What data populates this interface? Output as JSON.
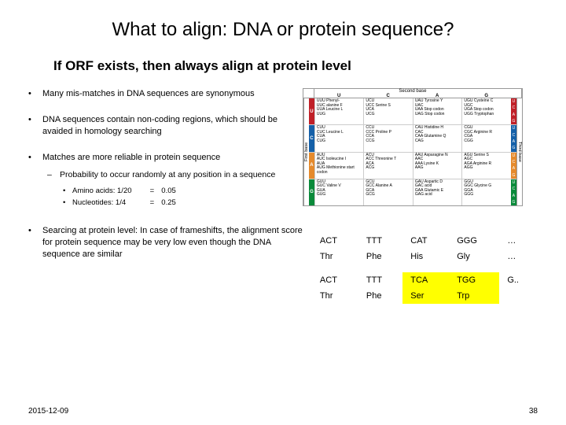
{
  "title": "What to align: DNA or protein sequence?",
  "subtitle": "If ORF exists, then always align at protein level",
  "bullets": [
    {
      "text": "Many mis-matches in DNA sequences are synonymous"
    },
    {
      "text": "DNA sequences contain non-coding regions, which should be avaided in homology searching"
    },
    {
      "text": "Matches are more reliable in protein sequence",
      "sub": {
        "text": "Probability to occur randomly at any position in a sequence",
        "rows": [
          {
            "label": "Amino acids: 1/20",
            "eq": "=",
            "val": "0.05"
          },
          {
            "label": "Nucleotides:  1/4",
            "eq": "=",
            "val": "0.25"
          }
        ]
      }
    },
    {
      "text": "Searcing at protein level: In case of frameshifts, the alignment score for protein sequence may be very low even though the DNA sequence are similar"
    }
  ],
  "codon_table": {
    "second_base_label": "Second base",
    "first_base_label": "First base",
    "third_base_label": "Third base",
    "cols": [
      "U",
      "C",
      "A",
      "G"
    ],
    "rows": [
      {
        "b": "U",
        "color": "#c02028",
        "cells": [
          "UUU Phenyl-\nUUC alanine F\nUUA Leucine L\nUUG",
          "UCU\nUCC Serine S\nUCA\nUCG",
          "UAU Tyrosine Y\nUAC\nUAA Stop codon\nUAG Stop codon",
          "UGU Cysteine C\nUGC\nUGA Stop codon\nUGG Tryptophan"
        ]
      },
      {
        "b": "C",
        "color": "#1560a8",
        "cells": [
          "CUU\nCUC Leucine L\nCUA\nCUG",
          "CCU\nCCC Proline P\nCCA\nCCG",
          "CAU Histidine H\nCAC\nCAA Glutamine Q\nCAG",
          "CGU\nCGC Arginine R\nCGA\nCGG"
        ]
      },
      {
        "b": "A",
        "color": "#e58a2c",
        "cells": [
          "AUU\nAUC Isoleucine I\nAUA\nAUG Methionine start codon",
          "ACU\nACC Threonine T\nACA\nACG",
          "AAU Asparagine N\nAAC\nAAA Lysine K\nAAG",
          "AGU Serine S\nAGC\nAGA Arginine R\nAGG"
        ]
      },
      {
        "b": "G",
        "color": "#0a8a3a",
        "cells": [
          "GUU\nGUC Valine V\nGUA\nGUG",
          "GCU\nGCC Alanine A\nGCA\nGCG",
          "GAU Aspartic D\nGAC acid\nGAA Glutamic E\nGAG acid",
          "GGU\nGGC Glycine G\nGGA\nGGG"
        ]
      }
    ]
  },
  "aa_table": {
    "rows": [
      [
        "ACT",
        "TTT",
        "CAT",
        "GGG",
        "…"
      ],
      [
        "Thr",
        "Phe",
        "His",
        "Gly",
        "…"
      ],
      [],
      [
        "ACT",
        "TTT",
        "TCA",
        "TGG",
        "G.."
      ],
      [
        "Thr",
        "Phe",
        "Ser",
        "Trp",
        ""
      ]
    ],
    "highlights": {
      "3": [
        2,
        3
      ],
      "4": [
        2,
        3
      ]
    }
  },
  "date": "2015-12-09",
  "page_num": "38"
}
